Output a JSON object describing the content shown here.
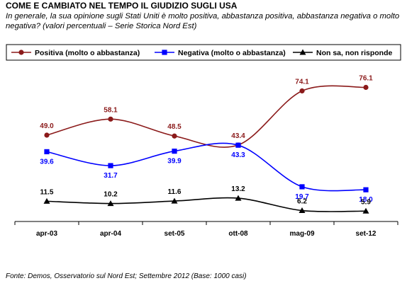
{
  "header": {
    "title": "COME E CAMBIATO NEL TEMPO IL GIUDIZIO SUGLI USA",
    "subtitle": "In generale, la sua opinione sugli Stati Uniti è molto positiva, abbastanza positiva, abbastanza negativa o molto negativa? (valori percentuali – Serie Storica Nord Est)"
  },
  "footer": {
    "source": "Fonte: Demos, Osservatorio sul Nord Est; Settembre 2012 (Base: 1000 casi)"
  },
  "chart_data": {
    "type": "line",
    "smooth": true,
    "categories": [
      "apr-03",
      "apr-04",
      "set-05",
      "ott-08",
      "mag-09",
      "set-12"
    ],
    "ylim": [
      0,
      85
    ],
    "grid": false,
    "legend": "top",
    "series": [
      {
        "name": "Positiva (molto o abbastanza)",
        "color": "#8b1a1a",
        "marker": "circle",
        "values": [
          49.0,
          58.1,
          48.5,
          43.4,
          74.1,
          76.1
        ],
        "labels": [
          "49.0",
          "58.1",
          "48.5",
          "43.4",
          "74.1",
          "76.1"
        ],
        "label_pos": "above"
      },
      {
        "name": "Negativa (molto o abbastanza)",
        "color": "#0000ff",
        "marker": "square",
        "values": [
          39.6,
          31.7,
          39.9,
          43.3,
          19.7,
          18.0
        ],
        "labels": [
          "39.6",
          "31.7",
          "39.9",
          "43.3",
          "19.7",
          "18.0"
        ],
        "label_pos": "below"
      },
      {
        "name": "Non sa, non risponde",
        "color": "#000000",
        "marker": "triangle",
        "values": [
          11.5,
          10.2,
          11.6,
          13.2,
          6.2,
          5.9
        ],
        "labels": [
          "11.5",
          "10.2",
          "11.6",
          "13.2",
          "6.2",
          "5.9"
        ],
        "label_pos": "above"
      }
    ]
  }
}
